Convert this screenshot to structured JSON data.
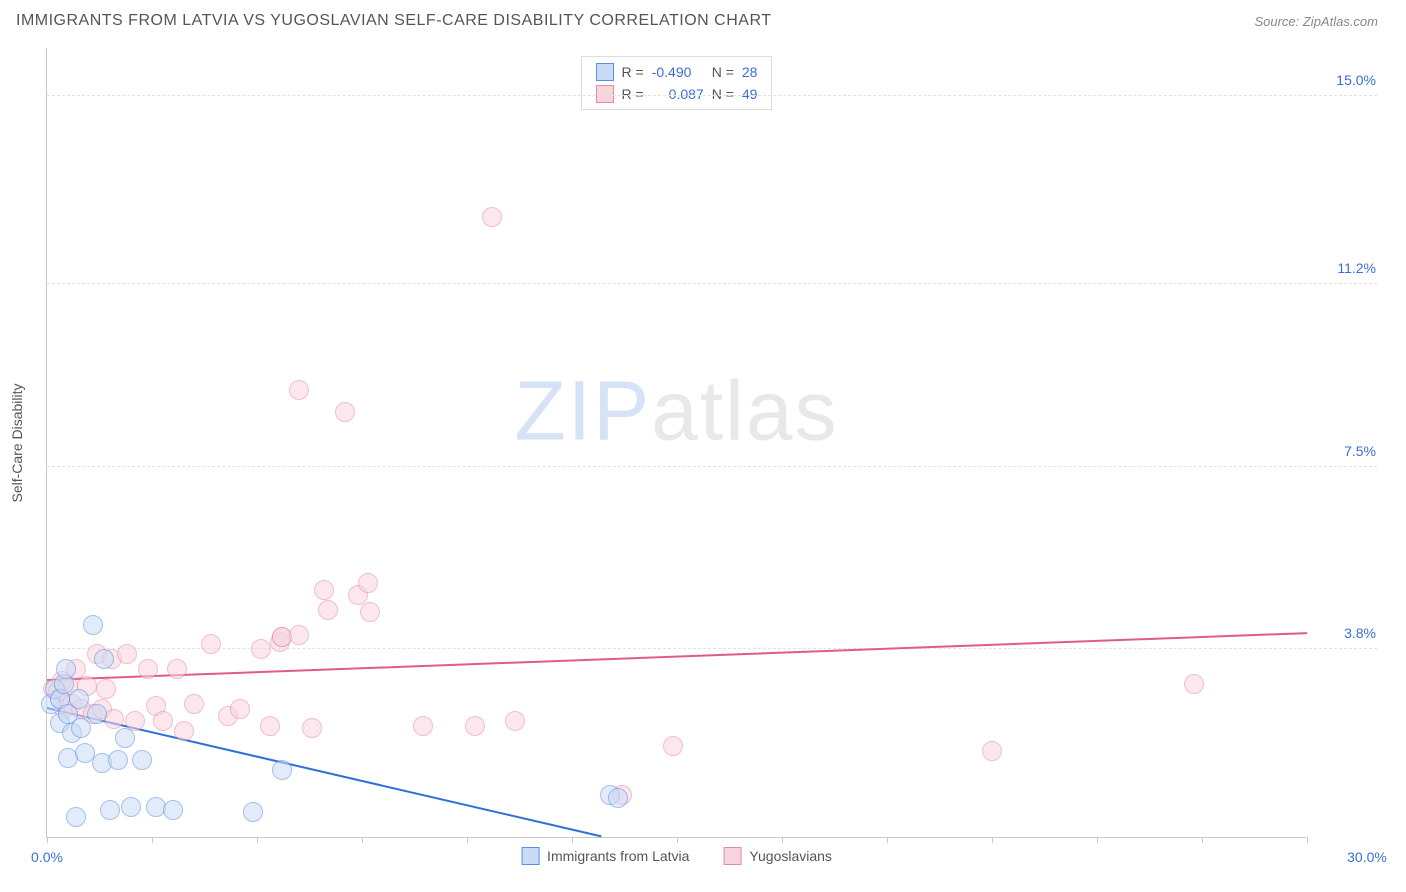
{
  "header": {
    "title": "IMMIGRANTS FROM LATVIA VS YUGOSLAVIAN SELF-CARE DISABILITY CORRELATION CHART",
    "source_prefix": "Source: ",
    "source_name": "ZipAtlas.com"
  },
  "chart": {
    "type": "scatter",
    "ylabel": "Self-Care Disability",
    "xlim": [
      0,
      30
    ],
    "ylim": [
      0,
      16
    ],
    "background_color": "#ffffff",
    "grid_color": "#e3e3e3",
    "axis_color": "#c8c8c8",
    "xticks": [
      0,
      2.5,
      5,
      7.5,
      10,
      12.5,
      15,
      17.5,
      20,
      22.5,
      25,
      27.5,
      30
    ],
    "xtick_labels": {
      "0": "0.0%",
      "30": "30.0%"
    },
    "xtick_label_colors": {
      "0": "#3a6fd8",
      "30": "#3a6fd8"
    },
    "yticks": [
      3.8,
      7.5,
      11.2,
      15.0
    ],
    "ytick_labels": [
      "3.8%",
      "7.5%",
      "11.2%",
      "15.0%"
    ],
    "ytick_label_color": "#3a6fd8",
    "point_radius": 10,
    "point_stroke_width": 1.5,
    "series": [
      {
        "name": "Immigrants from Latvia",
        "fill": "#c9dbf6",
        "stroke": "#5a8fe0",
        "fill_opacity": 0.55,
        "R": "-0.490",
        "N": "28",
        "trend": {
          "x1": 0,
          "y1": 2.6,
          "x2": 13.2,
          "y2": 0,
          "color": "#2e6fd8",
          "width": 2
        },
        "points": [
          [
            0.1,
            2.7
          ],
          [
            0.2,
            3.0
          ],
          [
            0.3,
            2.3
          ],
          [
            0.3,
            2.8
          ],
          [
            0.4,
            3.1
          ],
          [
            0.45,
            3.4
          ],
          [
            0.5,
            1.6
          ],
          [
            0.5,
            2.5
          ],
          [
            0.6,
            2.1
          ],
          [
            0.7,
            0.4
          ],
          [
            0.75,
            2.8
          ],
          [
            0.8,
            2.2
          ],
          [
            0.9,
            1.7
          ],
          [
            1.1,
            4.3
          ],
          [
            1.2,
            2.5
          ],
          [
            1.3,
            1.5
          ],
          [
            1.35,
            3.6
          ],
          [
            1.5,
            0.55
          ],
          [
            1.7,
            1.55
          ],
          [
            1.85,
            2.0
          ],
          [
            2.0,
            0.6
          ],
          [
            2.25,
            1.55
          ],
          [
            2.6,
            0.6
          ],
          [
            3.0,
            0.55
          ],
          [
            4.9,
            0.5
          ],
          [
            5.6,
            1.35
          ],
          [
            13.4,
            0.85
          ],
          [
            13.6,
            0.8
          ]
        ]
      },
      {
        "name": "Yugoslavians",
        "fill": "#f8d5de",
        "stroke": "#e78aa4",
        "fill_opacity": 0.55,
        "R": "0.087",
        "N": "49",
        "trend": {
          "x1": 0,
          "y1": 3.15,
          "x2": 30,
          "y2": 4.1,
          "color": "#e05c88",
          "width": 2
        },
        "points": [
          [
            0.15,
            3.0
          ],
          [
            0.25,
            2.95
          ],
          [
            0.3,
            2.8
          ],
          [
            0.35,
            3.15
          ],
          [
            0.4,
            2.6
          ],
          [
            0.5,
            3.05
          ],
          [
            0.6,
            2.7
          ],
          [
            0.7,
            3.4
          ],
          [
            0.8,
            2.6
          ],
          [
            0.95,
            3.05
          ],
          [
            1.1,
            2.5
          ],
          [
            1.2,
            3.7
          ],
          [
            1.3,
            2.6
          ],
          [
            1.4,
            3.0
          ],
          [
            1.55,
            3.6
          ],
          [
            1.6,
            2.4
          ],
          [
            1.9,
            3.7
          ],
          [
            2.1,
            2.35
          ],
          [
            2.4,
            3.4
          ],
          [
            2.6,
            2.65
          ],
          [
            2.75,
            2.35
          ],
          [
            3.1,
            3.4
          ],
          [
            3.25,
            2.15
          ],
          [
            3.5,
            2.7
          ],
          [
            3.9,
            3.9
          ],
          [
            4.3,
            2.45
          ],
          [
            4.6,
            2.6
          ],
          [
            5.1,
            3.8
          ],
          [
            5.3,
            2.25
          ],
          [
            5.55,
            3.95
          ],
          [
            5.6,
            4.05
          ],
          [
            5.6,
            4.05
          ],
          [
            6.0,
            4.1
          ],
          [
            6.0,
            9.05
          ],
          [
            6.3,
            2.2
          ],
          [
            6.6,
            5.0
          ],
          [
            6.7,
            4.6
          ],
          [
            7.1,
            8.6
          ],
          [
            7.4,
            4.9
          ],
          [
            7.65,
            5.15
          ],
          [
            7.7,
            4.55
          ],
          [
            8.95,
            2.25
          ],
          [
            10.2,
            2.25
          ],
          [
            10.6,
            12.55
          ],
          [
            11.15,
            2.35
          ],
          [
            13.7,
            0.85
          ],
          [
            14.9,
            1.85
          ],
          [
            22.5,
            1.75
          ],
          [
            27.3,
            3.1
          ]
        ]
      }
    ]
  },
  "legend_top": {
    "R_label": "R =",
    "N_label": "N ="
  },
  "legend_bottom": {
    "items": [
      "Immigrants from Latvia",
      "Yugoslavians"
    ]
  },
  "watermark": {
    "zip": "ZIP",
    "atlas": "atlas"
  }
}
